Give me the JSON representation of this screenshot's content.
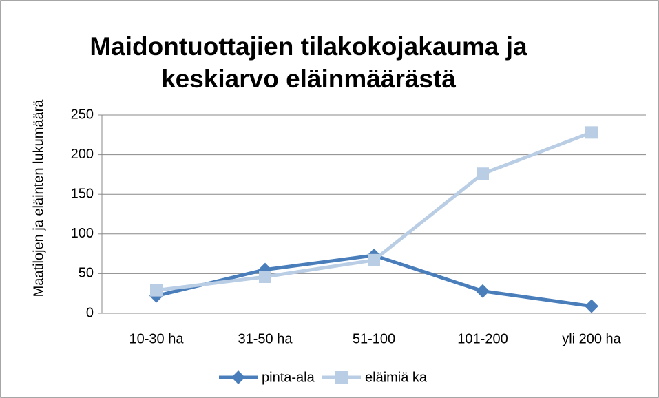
{
  "chart_data": {
    "type": "line",
    "title": [
      "Maidontuottajien tilakokojakauma  ja",
      "keskiarvo eläinmäärästä"
    ],
    "y_label": "Maatilojen ja eläinten lukumäärä",
    "categories": [
      "10-30 ha",
      "31-50 ha",
      "51-100",
      "101-200",
      "yli 200 ha"
    ],
    "series": [
      {
        "name": "pinta-ala",
        "color": "#4a7ebb",
        "marker": "diamond",
        "values": [
          22,
          55,
          73,
          28,
          9
        ]
      },
      {
        "name": "eläimiä ka",
        "color": "#b9cde5",
        "marker": "square",
        "values": [
          29,
          46,
          67,
          176,
          228
        ]
      }
    ],
    "ylim": [
      0,
      250
    ],
    "yticks": [
      0,
      50,
      100,
      150,
      200,
      250
    ],
    "grid": true,
    "legend": "bottom"
  }
}
